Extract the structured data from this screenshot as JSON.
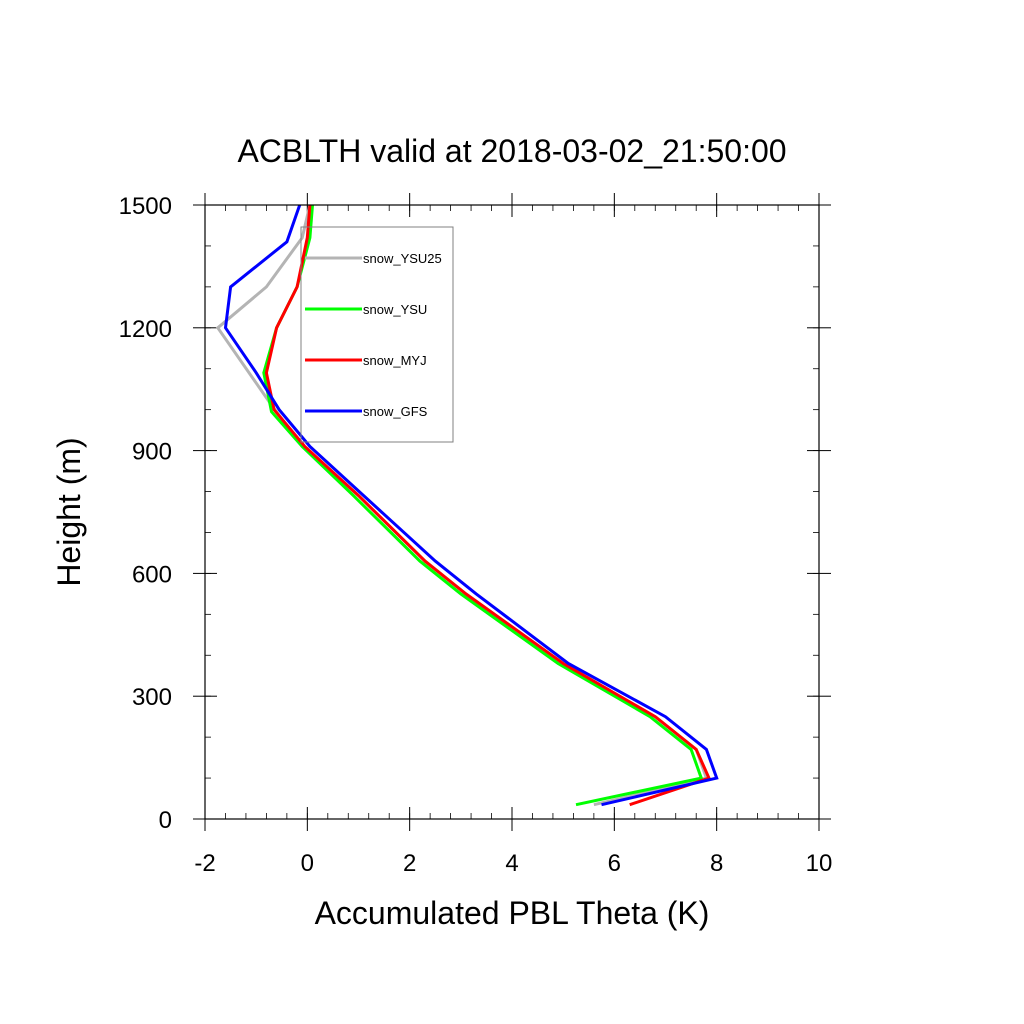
{
  "chart_data": {
    "type": "line",
    "title": "ACBLTH valid at 2018-03-02_21:50:00",
    "xlabel": "Accumulated PBL Theta (K)",
    "ylabel": "Height (m)",
    "xlim": [
      -2,
      10
    ],
    "ylim": [
      0,
      1500
    ],
    "x_ticks": [
      -2,
      0,
      2,
      4,
      6,
      8,
      10
    ],
    "y_ticks": [
      0,
      300,
      600,
      900,
      1200,
      1500
    ],
    "legend_position": "top-left inside",
    "series": [
      {
        "name": "snow_YSU25",
        "color": "#b4b4b4",
        "points": [
          [
            5.6,
            35
          ],
          [
            7.8,
            100
          ],
          [
            7.6,
            170
          ],
          [
            6.8,
            250
          ],
          [
            5.0,
            380
          ],
          [
            3.1,
            550
          ],
          [
            2.3,
            630
          ],
          [
            1.0,
            790
          ],
          [
            -0.1,
            910
          ],
          [
            -0.75,
            1020
          ],
          [
            -1.75,
            1200
          ],
          [
            -0.8,
            1300
          ],
          [
            -0.1,
            1420
          ],
          [
            0.05,
            1500
          ]
        ]
      },
      {
        "name": "snow_YSU",
        "color": "#00ff00",
        "points": [
          [
            5.25,
            35
          ],
          [
            7.7,
            100
          ],
          [
            7.5,
            170
          ],
          [
            6.7,
            250
          ],
          [
            4.9,
            380
          ],
          [
            3.0,
            550
          ],
          [
            2.2,
            630
          ],
          [
            0.9,
            790
          ],
          [
            -0.1,
            910
          ],
          [
            -0.7,
            995
          ],
          [
            -0.85,
            1090
          ],
          [
            -0.6,
            1200
          ],
          [
            -0.2,
            1300
          ],
          [
            0.05,
            1420
          ],
          [
            0.1,
            1500
          ]
        ]
      },
      {
        "name": "snow_MYJ",
        "color": "#ff0000",
        "points": [
          [
            6.3,
            35
          ],
          [
            7.85,
            100
          ],
          [
            7.6,
            170
          ],
          [
            6.8,
            250
          ],
          [
            5.0,
            380
          ],
          [
            3.1,
            550
          ],
          [
            2.3,
            630
          ],
          [
            1.0,
            790
          ],
          [
            -0.05,
            910
          ],
          [
            -0.65,
            1000
          ],
          [
            -0.8,
            1090
          ],
          [
            -0.6,
            1200
          ],
          [
            -0.2,
            1300
          ],
          [
            0.0,
            1420
          ],
          [
            0.05,
            1500
          ]
        ]
      },
      {
        "name": "snow_GFS",
        "color": "#0000ff",
        "points": [
          [
            5.75,
            35
          ],
          [
            8.0,
            100
          ],
          [
            7.8,
            170
          ],
          [
            7.0,
            250
          ],
          [
            5.1,
            380
          ],
          [
            3.3,
            550
          ],
          [
            2.5,
            630
          ],
          [
            1.1,
            790
          ],
          [
            0.05,
            910
          ],
          [
            -0.55,
            1000
          ],
          [
            -1.0,
            1090
          ],
          [
            -1.6,
            1200
          ],
          [
            -1.5,
            1300
          ],
          [
            -0.4,
            1410
          ],
          [
            -0.15,
            1500
          ]
        ]
      }
    ]
  }
}
